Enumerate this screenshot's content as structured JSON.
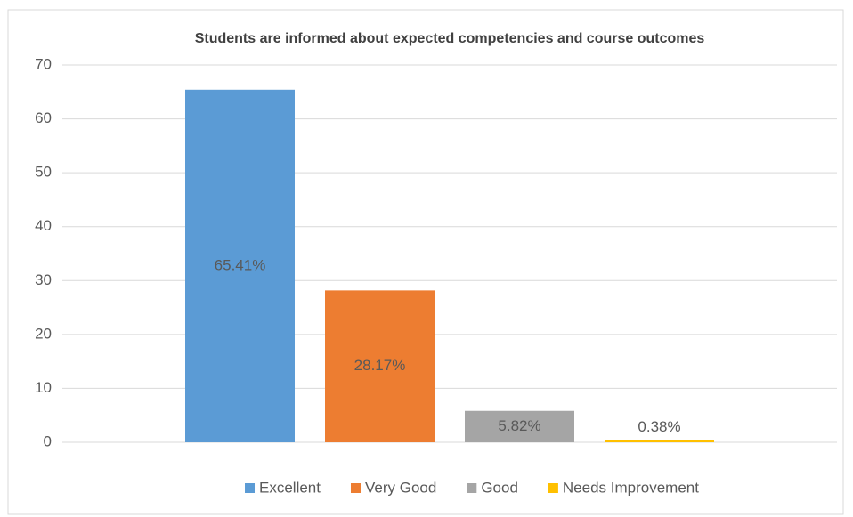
{
  "chart_data": {
    "type": "bar",
    "title": "Students are informed about expected competencies and course outcomes",
    "categories": [
      null
    ],
    "series": [
      {
        "name": "Excellent",
        "color": "#5b9bd5",
        "values": [
          65.41
        ],
        "value_labels": [
          "65.41%"
        ]
      },
      {
        "name": "Very Good",
        "color": "#ed7d31",
        "values": [
          28.17
        ],
        "value_labels": [
          "28.17%"
        ]
      },
      {
        "name": "Good",
        "color": "#a5a5a5",
        "values": [
          5.82
        ],
        "value_labels": [
          "5.82%"
        ]
      },
      {
        "name": "Needs Improvement",
        "color": "#ffc000",
        "values": [
          0.38
        ],
        "value_labels": [
          "0.38%"
        ]
      }
    ],
    "ylim": [
      0,
      70
    ],
    "yticks": [
      0,
      10,
      20,
      30,
      40,
      50,
      60,
      70
    ],
    "grid": true,
    "legend": "bottom"
  }
}
